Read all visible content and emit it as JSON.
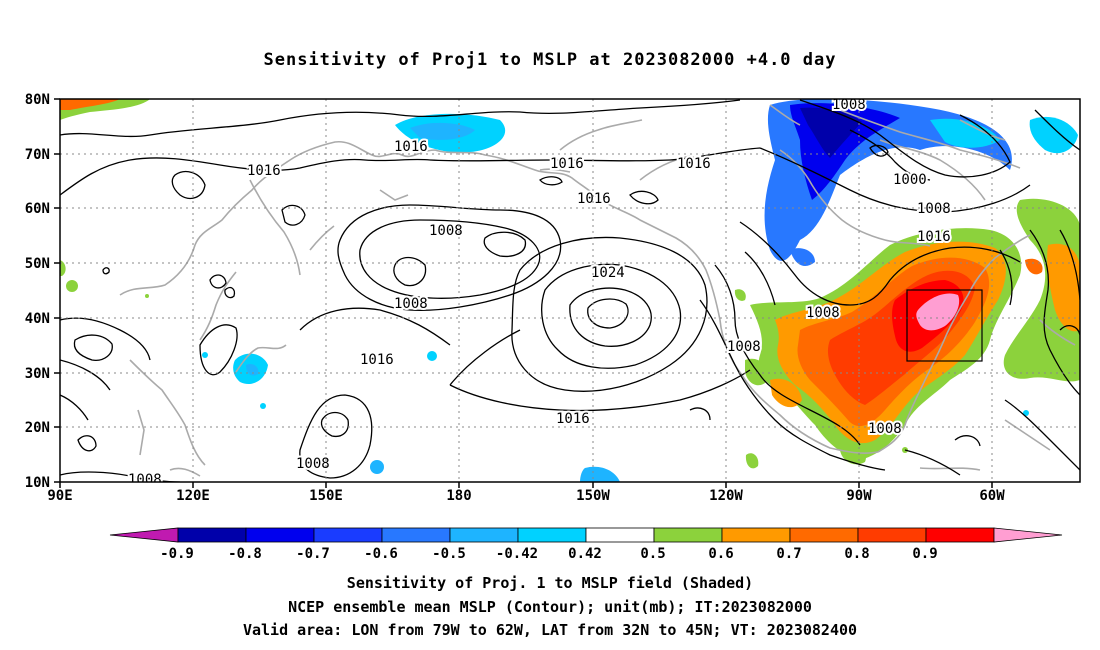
{
  "title": "Sensitivity of Proj1 to MSLP at 2023082000 +4.0 day",
  "map": {
    "lat_ticks": [
      "80N",
      "70N",
      "60N",
      "50N",
      "40N",
      "30N",
      "20N",
      "10N"
    ],
    "lon_ticks": [
      "90E",
      "120E",
      "150E",
      "180",
      "150W",
      "120W",
      "90W",
      "60W"
    ],
    "contour_labels": [
      "1008",
      "1016",
      "1016",
      "1016",
      "1016",
      "1000",
      "1008",
      "1016",
      "1008",
      "1008",
      "1024",
      "1016",
      "1008",
      "1008",
      "1016",
      "1008",
      "1008",
      "1016",
      "1008"
    ],
    "valid_box": {
      "lon_min": -79,
      "lon_max": -62,
      "lat_min": 32,
      "lat_max": 45
    }
  },
  "colorbar": {
    "colors": [
      "#c01ab0",
      "#0000aa",
      "#0000ee",
      "#1a3cff",
      "#2878ff",
      "#1eb4ff",
      "#00d2ff",
      "#ffffff",
      "#8cd23c",
      "#ff9a00",
      "#ff6a00",
      "#ff3c00",
      "#ff0000",
      "#ff9ed2"
    ],
    "labels": [
      "-0.9",
      "-0.8",
      "-0.7",
      "-0.6",
      "-0.5",
      "-0.42",
      "0.42",
      "0.5",
      "0.6",
      "0.7",
      "0.8",
      "0.9"
    ]
  },
  "caption": {
    "line1": "Sensitivity of Proj. 1 to MSLP field (Shaded)",
    "line2": "NCEP ensemble mean MSLP (Contour); unit(mb); IT:2023082000",
    "line3": "Valid area: LON from 79W to 62W, LAT from 32N to 45N; VT: 2023082400"
  }
}
